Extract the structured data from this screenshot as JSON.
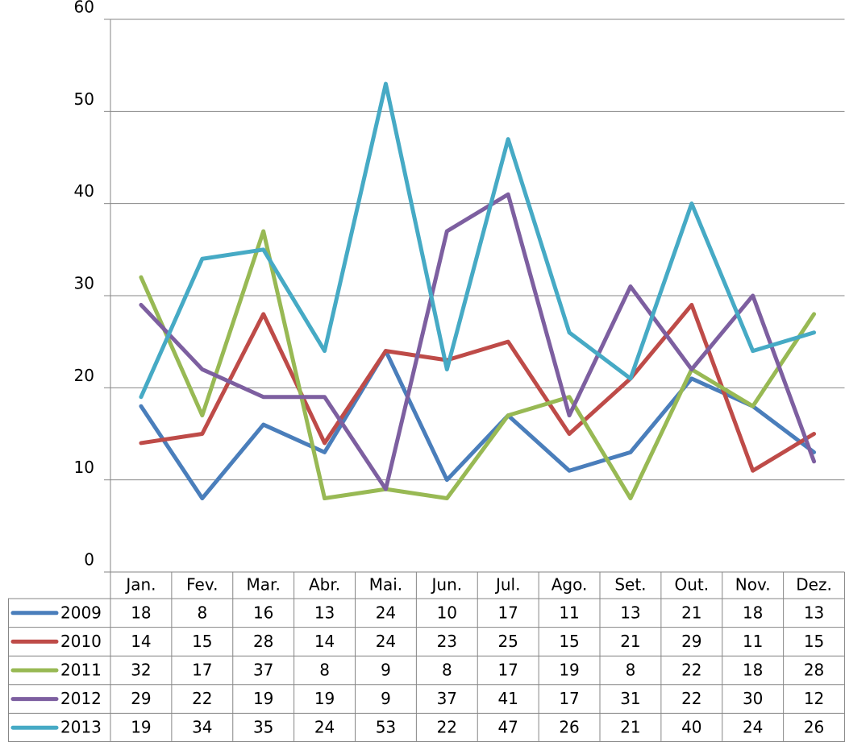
{
  "chart_data": {
    "type": "line",
    "categories": [
      "Jan.",
      "Fev.",
      "Mar.",
      "Abr.",
      "Mai.",
      "Jun.",
      "Jul.",
      "Ago.",
      "Set.",
      "Out.",
      "Nov.",
      "Dez."
    ],
    "series": [
      {
        "name": "2009",
        "color": "#4a7ebb",
        "values": [
          18,
          8,
          16,
          13,
          24,
          10,
          17,
          11,
          13,
          21,
          18,
          13
        ]
      },
      {
        "name": "2010",
        "color": "#be4b48",
        "values": [
          14,
          15,
          28,
          14,
          24,
          23,
          25,
          15,
          21,
          29,
          11,
          15
        ]
      },
      {
        "name": "2011",
        "color": "#98b954",
        "values": [
          32,
          17,
          37,
          8,
          9,
          8,
          17,
          19,
          8,
          22,
          18,
          28
        ]
      },
      {
        "name": "2012",
        "color": "#7d5fa0",
        "values": [
          29,
          22,
          19,
          19,
          9,
          37,
          41,
          17,
          31,
          22,
          30,
          12
        ]
      },
      {
        "name": "2013",
        "color": "#46aac5",
        "values": [
          19,
          34,
          35,
          24,
          53,
          22,
          47,
          26,
          21,
          40,
          24,
          26
        ]
      }
    ],
    "ylim": [
      0,
      60
    ],
    "yticks": [
      0,
      10,
      20,
      30,
      40,
      50,
      60
    ],
    "grid": true
  }
}
